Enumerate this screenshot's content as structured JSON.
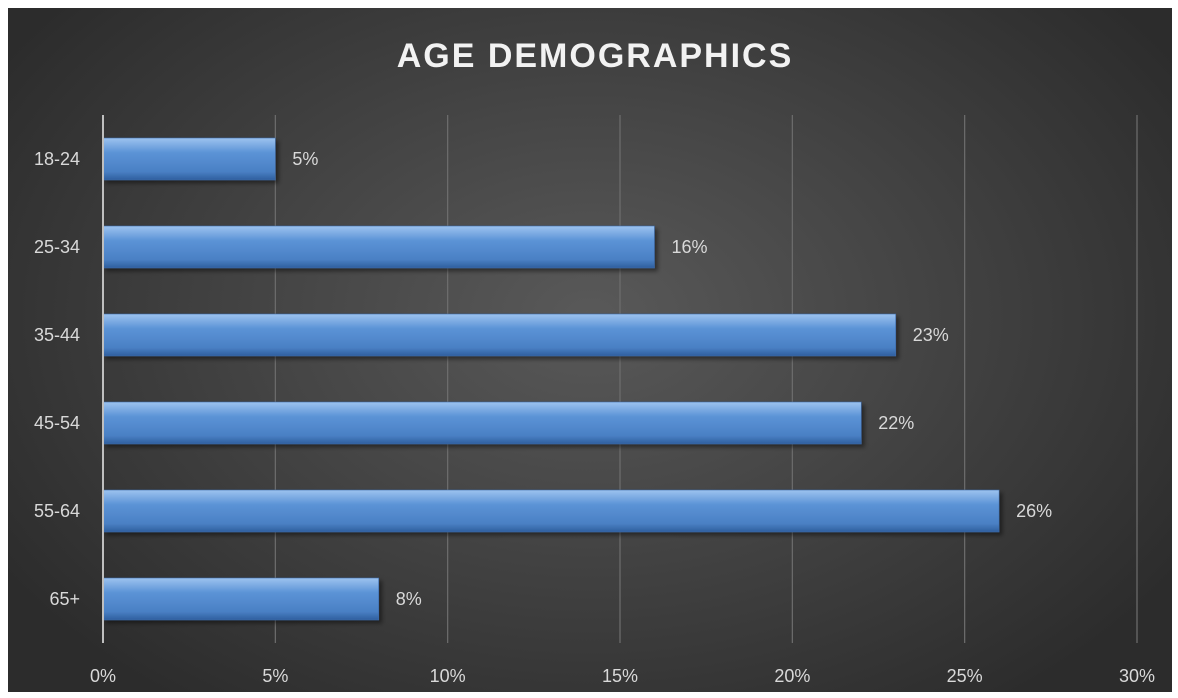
{
  "chart_data": {
    "type": "bar",
    "orientation": "horizontal",
    "title": "AGE DEMOGRAPHICS",
    "categories": [
      "18-24",
      "25-34",
      "35-44",
      "45-54",
      "55-64",
      "65+"
    ],
    "values": [
      5,
      16,
      23,
      22,
      26,
      8
    ],
    "data_labels": [
      "5%",
      "16%",
      "23%",
      "22%",
      "26%",
      "8%"
    ],
    "x_ticks": [
      "0%",
      "5%",
      "10%",
      "15%",
      "20%",
      "25%",
      "30%"
    ],
    "xlim": [
      0,
      30
    ],
    "grid": true,
    "legend": "none",
    "colors": {
      "bar_light": "#9dc3ef",
      "bar_main": "#5b93d6",
      "bar_dark": "#2f5f9e",
      "background_center": "#595959",
      "background_edge": "#2c2c2c",
      "text": "#d9d9d9",
      "title": "#f2f2f2",
      "grid": "#6e6e6e",
      "axis": "#bfbfbf"
    }
  }
}
